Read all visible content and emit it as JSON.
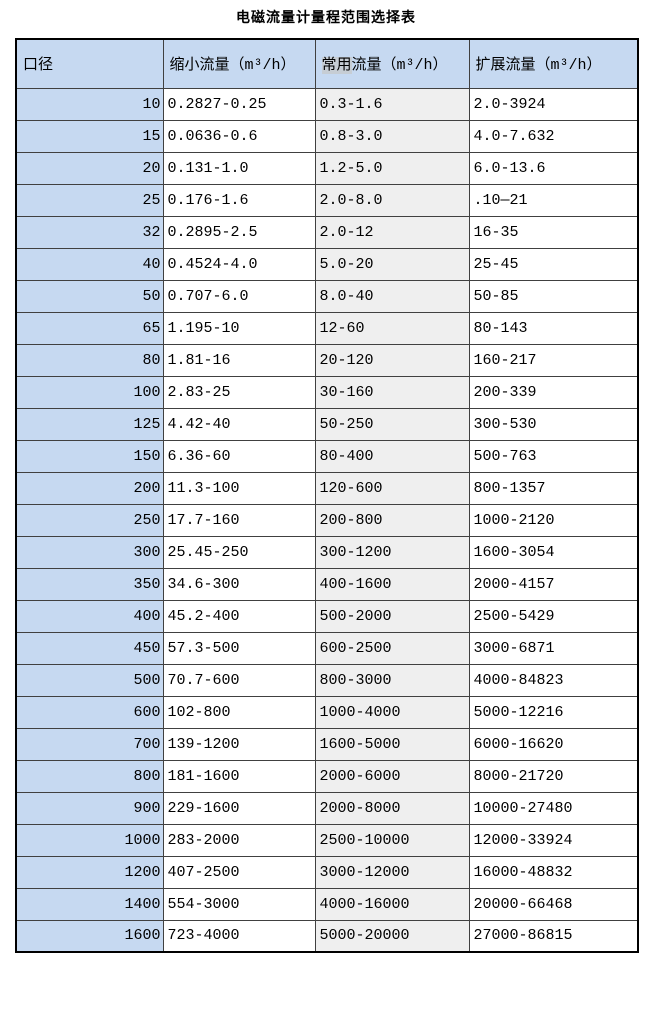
{
  "page": {
    "title": "电磁流量计量程范围选择表"
  },
  "table": {
    "columns": [
      {
        "label": "口径"
      },
      {
        "label": "缩小流量（m³/h）"
      },
      {
        "label_highlight": "常用",
        "label_rest": "流量（m³/h）"
      },
      {
        "label": "扩展流量（m³/h）"
      }
    ],
    "rows": [
      [
        "10",
        "0.2827-0.25",
        "0.3-1.6",
        "2.0-3924"
      ],
      [
        "15",
        "0.0636-0.6",
        "0.8-3.0",
        "4.0-7.632"
      ],
      [
        "20",
        "0.131-1.0",
        "1.2-5.0",
        "6.0-13.6"
      ],
      [
        "25",
        "0.176-1.6",
        "2.0-8.0",
        ".10—21"
      ],
      [
        "32",
        "0.2895-2.5",
        "2.0-12",
        "16-35"
      ],
      [
        "40",
        "0.4524-4.0",
        "5.0-20",
        "25-45"
      ],
      [
        "50",
        "0.707-6.0",
        "8.0-40",
        "50-85"
      ],
      [
        "65",
        "1.195-10",
        "12-60",
        "80-143"
      ],
      [
        "80",
        "1.81-16",
        "20-120",
        "160-217"
      ],
      [
        "100",
        "2.83-25",
        "30-160",
        "200-339"
      ],
      [
        "125",
        "4.42-40",
        "50-250",
        "300-530"
      ],
      [
        "150",
        "6.36-60",
        "80-400",
        "500-763"
      ],
      [
        "200",
        "11.3-100",
        "120-600",
        "800-1357"
      ],
      [
        "250",
        "17.7-160",
        "200-800",
        "1000-2120"
      ],
      [
        "300",
        "25.45-250",
        "300-1200",
        "1600-3054"
      ],
      [
        "350",
        "34.6-300",
        "400-1600",
        "2000-4157"
      ],
      [
        "400",
        "45.2-400",
        "500-2000",
        "2500-5429"
      ],
      [
        "450",
        "57.3-500",
        "600-2500",
        "3000-6871"
      ],
      [
        "500",
        "70.7-600",
        "800-3000",
        "4000-84823"
      ],
      [
        "600",
        "102-800",
        "1000-4000",
        "5000-12216"
      ],
      [
        "700",
        "139-1200",
        "1600-5000",
        "6000-16620"
      ],
      [
        "800",
        "181-1600",
        "2000-6000",
        "8000-21720"
      ],
      [
        "900",
        "229-1600",
        "2000-8000",
        "10000-27480"
      ],
      [
        "1000",
        "283-2000",
        "2500-10000",
        "12000-33924"
      ],
      [
        "1200",
        "407-2500",
        "3000-12000",
        "16000-48832"
      ],
      [
        "1400",
        "554-3000",
        "4000-16000",
        "20000-66468"
      ],
      [
        "1600",
        "723-4000",
        "5000-20000",
        "27000-86815"
      ]
    ],
    "colors": {
      "page_bg": "#ffffff",
      "header_bg": "#c6d9f1",
      "diameter_col_bg": "#c6d9f1",
      "common_col_bg": "#efefef",
      "highlight_bg": "#c6cdd4",
      "grid_border": "#404040",
      "outer_border": "#000000",
      "text": "#000000"
    }
  }
}
